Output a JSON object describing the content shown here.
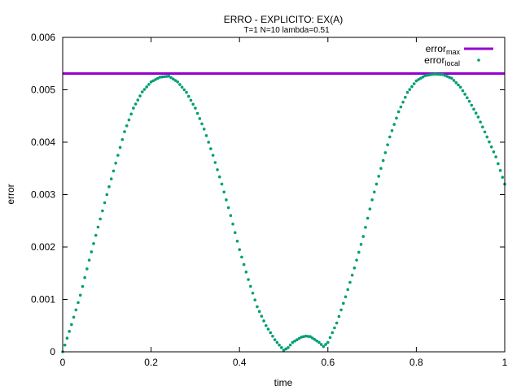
{
  "chart_data": {
    "type": "scatter",
    "title": "ERRO - EXPLICITO: EX(A)",
    "subtitle": "T=1 N=10 lambda=0.51",
    "xlabel": "time",
    "ylabel": "error",
    "xlim": [
      0,
      1
    ],
    "ylim": [
      0,
      0.006
    ],
    "x_ticks": [
      {
        "value": 0,
        "label": "0"
      },
      {
        "value": 0.2,
        "label": "0.2"
      },
      {
        "value": 0.4,
        "label": "0.4"
      },
      {
        "value": 0.6,
        "label": "0.6"
      },
      {
        "value": 0.8,
        "label": "0.8"
      },
      {
        "value": 1,
        "label": "1"
      }
    ],
    "y_ticks": [
      {
        "value": 0,
        "label": "0"
      },
      {
        "value": 0.001,
        "label": "0.001"
      },
      {
        "value": 0.002,
        "label": "0.002"
      },
      {
        "value": 0.003,
        "label": "0.003"
      },
      {
        "value": 0.004,
        "label": "0.004"
      },
      {
        "value": 0.005,
        "label": "0.005"
      },
      {
        "value": 0.006,
        "label": "0.006"
      }
    ],
    "grid": false,
    "legend_position": "top-right",
    "series": [
      {
        "name": "error_max",
        "legend_base": "error",
        "legend_sub": "max",
        "style": "line",
        "color": "#9400d3",
        "x": [
          0,
          1
        ],
        "y": [
          0.00531,
          0.00531
        ]
      },
      {
        "name": "error_local",
        "legend_base": "error",
        "legend_sub": "local",
        "style": "points",
        "color": "#009e73",
        "x": [
          0,
          0.02,
          0.04,
          0.06,
          0.08,
          0.1,
          0.12,
          0.14,
          0.16,
          0.18,
          0.2,
          0.22,
          0.24,
          0.26,
          0.28,
          0.3,
          0.32,
          0.34,
          0.36,
          0.38,
          0.4,
          0.42,
          0.44,
          0.46,
          0.48,
          0.5,
          0.51,
          0.52,
          0.54,
          0.55,
          0.56,
          0.58,
          0.59,
          0.6,
          0.62,
          0.64,
          0.66,
          0.68,
          0.7,
          0.72,
          0.74,
          0.76,
          0.78,
          0.8,
          0.82,
          0.84,
          0.86,
          0.88,
          0.9,
          0.92,
          0.94,
          0.96,
          0.98,
          1.0
        ],
        "y": [
          0.0,
          0.00052,
          0.00108,
          0.00175,
          0.00238,
          0.003,
          0.0036,
          0.0042,
          0.00465,
          0.00496,
          0.00515,
          0.00524,
          0.00526,
          0.00515,
          0.00495,
          0.00465,
          0.00425,
          0.00375,
          0.0032,
          0.0026,
          0.00195,
          0.00138,
          0.00086,
          0.0005,
          0.00023,
          3e-05,
          8e-05,
          0.00018,
          0.00028,
          0.0003,
          0.00029,
          0.00018,
          0.0001,
          0.00018,
          0.00055,
          0.00105,
          0.0016,
          0.0022,
          0.0029,
          0.0035,
          0.0041,
          0.00458,
          0.00495,
          0.00517,
          0.00527,
          0.0053,
          0.00529,
          0.00522,
          0.00505,
          0.00478,
          0.00448,
          0.0041,
          0.00372,
          0.0032
        ]
      }
    ]
  }
}
